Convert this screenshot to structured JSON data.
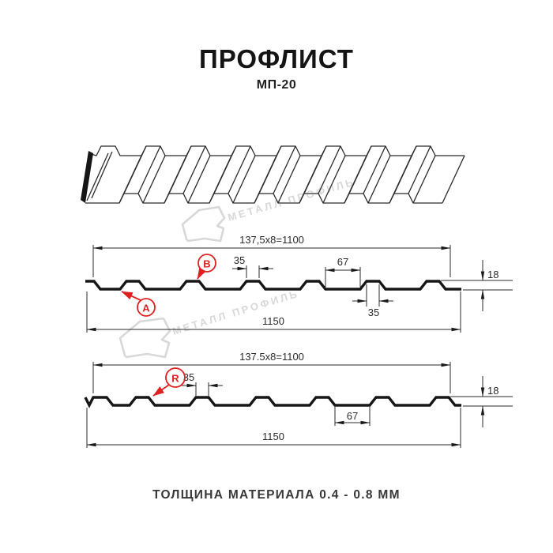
{
  "header": {
    "title": "ПРОФЛИСТ",
    "subtitle": "МП-20"
  },
  "footer": {
    "label": "ТОЛЩИНА МАТЕРИАЛА 0.4 - 0.8 ММ"
  },
  "watermark": {
    "text": "МЕТАЛЛ ПРОФИЛЬ",
    "color": "#d8d8d8"
  },
  "colors": {
    "line": "#161616",
    "red": "#e02020",
    "dim_text": "#2b2b2b"
  },
  "section_top": {
    "pitch_label": "137,5x8=1100",
    "crest_width_label": "35",
    "valley_width_label": "67",
    "crest_base_label": "35",
    "height_label": "18",
    "overall_width_label": "1150",
    "marker_a": "А",
    "marker_b": "В"
  },
  "section_bottom": {
    "pitch_label": "137.5x8=1100",
    "crest_width_label": "35",
    "valley_width_label": "67",
    "height_label": "18",
    "overall_width_label": "1150",
    "marker_r": "R"
  }
}
